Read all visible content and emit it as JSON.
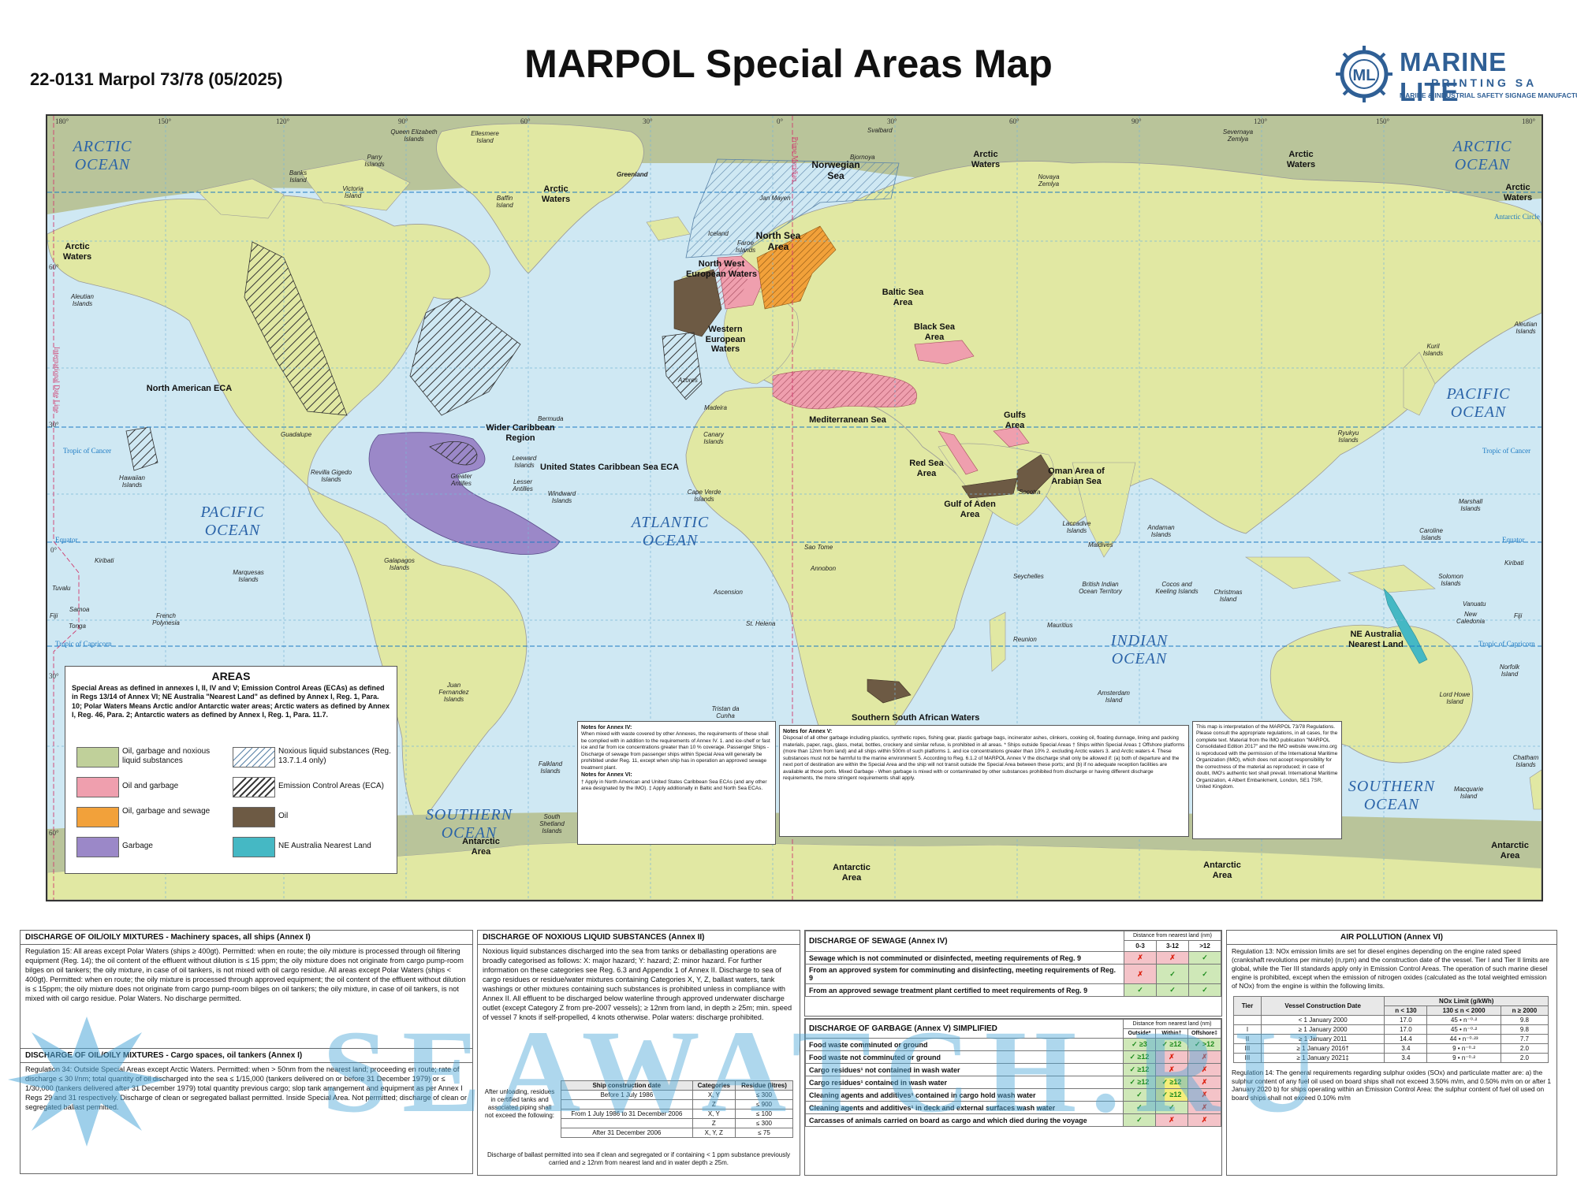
{
  "header": {
    "doc_code": "22-0131 Marpol 73/78 (05/2025)",
    "title": "MARPOL Special Areas Map",
    "logo_brand": "MARINE LITE",
    "logo_sub": "PRINTING SA",
    "logo_tagline": "MARINE & INDUSTRIAL SAFETY SIGNAGE MANUFACTURER"
  },
  "colors": {
    "land": "#e1e8a3",
    "sea": "#cfe8f3",
    "arctic": "#b9c49a",
    "oil_garbage_nls": "#c0d09a",
    "oil_garbage": "#ef9fae",
    "oil_garbage_sewage": "#f2a13a",
    "oil": "#6d5a44",
    "garbage": "#9b88c8",
    "ne_australia": "#45b8c4"
  },
  "map": {
    "oceans": [
      "ARCTIC OCEAN",
      "ARCTIC OCEAN",
      "PACIFIC OCEAN",
      "PACIFIC OCEAN",
      "ATLANTIC OCEAN",
      "INDIAN OCEAN",
      "SOUTHERN OCEAN",
      "SOUTHERN OCEAN"
    ],
    "longitudes_top": [
      "180°",
      "150°",
      "120°",
      "90°",
      "60°",
      "30°",
      "0°",
      "30°",
      "60°",
      "90°",
      "120°",
      "150°",
      "180°"
    ],
    "latitudes": [
      "60°",
      "30°",
      "0°",
      "30°",
      "60°"
    ],
    "circles": {
      "antarctic": "Antarctic Circle",
      "cancer": "Tropic of Cancer",
      "equator": "Equator",
      "capricorn": "Tropic of Capricorn",
      "idl": "International Date Line",
      "prime": "Prime Meridian"
    },
    "areas": {
      "arctic_waters": "Arctic Waters",
      "norwegian_sea": "Norwegian Sea",
      "north_sea": "North Sea Area",
      "nw_european": "North West European Waters",
      "w_european": "Western European Waters",
      "baltic": "Baltic Sea Area",
      "black_sea": "Black Sea Area",
      "mediterranean": "Mediterranean Sea",
      "gulfs": "Gulfs Area",
      "red_sea": "Red Sea Area",
      "oman": "Oman Area of Arabian Sea",
      "aden": "Gulf of Aden Area",
      "wider_caribbean": "Wider Caribbean Region",
      "us_caribbean": "United States Caribbean Sea ECA",
      "north_american": "North American ECA",
      "south_african": "Southern South African Waters",
      "ne_australia": "NE Australia Nearest Land",
      "antarctic_area": "Antarctic Area"
    },
    "places": {
      "greenland": "Greenland",
      "queen_elizabeth": "Queen Elizabeth Islands",
      "ellesmere": "Ellesmere Island",
      "parry": "Parry Islands",
      "banks": "Banks Island",
      "victoria": "Victoria Island",
      "baffin": "Baffin Island",
      "svalbard": "Svalbard",
      "bjornoya": "Bjornoya",
      "jan_mayen": "Jan Mayen",
      "iceland": "Iceland",
      "faroe": "Faroe Islands",
      "severnaya": "Severnaya Zemlya",
      "novaya": "Novaya Zemlya",
      "aleutian": "Aleutian Islands",
      "kuril": "Kuril Islands",
      "ryukyu": "Ryukyu Islands",
      "hawaiian": "Hawaiian Islands",
      "guadalupe": "Guadalupe",
      "revilla": "Revilla Gigedo Islands",
      "bermuda": "Bermuda",
      "azores": "Azores",
      "madeira": "Madeira",
      "canary": "Canary Islands",
      "cape_verde": "Cape Verde Islands",
      "greater_antilles": "Greater Antilles",
      "leeward": "Leeward Islands",
      "lesser_antilles": "Lesser Antilles",
      "windward": "Windward Islands",
      "galapagos": "Galapagos Islands",
      "marquesas": "Marquesas Islands",
      "kiribati": "Kiribati",
      "tuvalu": "Tuvalu",
      "samoa": "Samoa",
      "fiji": "Fiji",
      "tonga": "Tonga",
      "french_polynesia": "French Polynesia",
      "juan_fernandez": "Juan Fernandez Islands",
      "falkland": "Falkland Islands",
      "south_shetland": "South Shetland Islands",
      "ascension": "Ascension",
      "st_helena": "St. Helena",
      "tristan": "Tristan da Cunha",
      "sao_tome": "Sao Tome",
      "annobon": "Annobon",
      "socotra": "Socotra",
      "laccadive": "Laccadive Islands",
      "maldives": "Maldives",
      "andaman": "Andaman Islands",
      "seychelles": "Seychelles",
      "biot": "British Indian Ocean Territory",
      "cocos": "Cocos and Keeling Islands",
      "christmas": "Christmas Island",
      "mauritius": "Mauritius",
      "reunion": "Reunion",
      "amsterdam": "Amsterdam Island",
      "marshall": "Marshall Islands",
      "caroline": "Caroline Islands",
      "kiribati_e": "Kiribati",
      "solomon": "Solomon Islands",
      "vanuatu": "Vanuatu",
      "fiji_e": "Fiji",
      "new_caledonia": "New Caledonia",
      "norfolk": "Norfolk Island",
      "lord_howe": "Lord Howe Island",
      "chatham": "Chatham Islands",
      "macquarie": "Macquarie Island",
      "aleutian_e": "Aleutian Islands"
    }
  },
  "legend": {
    "title": "AREAS",
    "description": "Special Areas as defined in annexes I, II, IV and V; Emission Control Areas (ECAs) as defined in Regs 13/14 of Annex VI; NE Australia \"Nearest Land\" as defined by Annex I, Reg. 1, Para. 10; Polar Waters Means Arctic and/or Antarctic water areas; Arctic waters as defined by Annex I, Reg. 46, Para. 2; Antarctic waters as defined by Annex I, Reg. 1, Para. 11.7.",
    "items": [
      "Oil, garbage and noxious liquid substances",
      "Oil and garbage",
      "Oil, garbage and sewage",
      "Garbage",
      "Noxious liquid substances (Reg. 13.7.1.4 only)",
      "Emission Control Areas (ECA)",
      "Oil",
      "NE Australia Nearest Land"
    ]
  },
  "notes": {
    "annex4_title": "Notes for Annex IV:",
    "annex4_text": "When mixed with waste covered by other Annexes, the requirements of these shall be complied with in addition to the requirements of Annex IV. 1. and ice-shelf or fast ice and far from ice concentrations greater than 10 % coverage. Passenger Ships - Discharge of sewage from passenger ships within Special Area will generally be prohibited under Reg. 11, except when ship has in operation an approved sewage treatment plant.",
    "annex6_title": "Notes for Annex VI:",
    "annex6_text": "† Apply in North American and United States Caribbean Sea ECAs (and any other area designated by the IMO). ‡ Apply additionally in Baltic and North Sea ECAs.",
    "annex5_title": "Notes for Annex V:",
    "annex5_text": "Disposal of all other garbage including plastics, synthetic ropes, fishing gear, plastic garbage bags, incinerator ashes, clinkers, cooking oil, floating dunnage, lining and packing materials, paper, rags, glass, metal, bottles, crockery and similar refuse, is prohibited in all areas. * Ships outside Special Areas † Ships within Special Areas ‡ Offshore platforms (more than 12nm from land) and all ships within 500m of such platforms 1. and ice concentrations greater than 10% 2. excluding Arctic waters 3. and Arctic waters 4. These substances must not be harmful to the marine environment 5. According to Reg. 6.1.2 of MARPOL Annex V the discharge shall only be allowed if: (a) both of departure and the next port of destination are within the Special Area and the ship will not transit outside the Special Area between these ports; and (b) if no adequate reception facilities are available at those ports. Mixed Garbage - When garbage is mixed with or contaminated by other substances prohibited from discharge or having different discharge requirements, the more stringent requirements shall apply.",
    "imo_text": "This map is interpretation of the MARPOL 73/78 Regulations. Please consult the appropriate regulations, in all cases, for the complete text. Material from the IMO publication \"MARPOL Consolidated Edition 2017\" and the IMO website www.imo.org is reproduced with the permission of the International Maritime Organization (IMO), which does not accept responsibility for the correctness of the material as reproduced; in case of doubt, IMO's authentic text shall prevail. International Maritime Organization, 4 Albert Embankment, London, SE1 7SR, United Kingdom."
  },
  "oil_panel": {
    "title": "DISCHARGE OF OIL/OILY MIXTURES - Machinery spaces, all ships (Annex I)",
    "text": "Regulation 15: All areas except Polar Waters (ships ≥ 400gt). Permitted: when en route; the oily mixture is processed through oil filtering equipment (Reg. 14); the oil content of the effluent without dilution is ≤ 15 ppm; the oily mixture does not originate from cargo pump-room bilges on oil tankers; the oily mixture, in case of oil tankers, is not mixed with oil cargo residue. All areas except Polar Waters (ships < 400gt). Permitted: when en route; the oily mixture is processed through approved equipment; the oil content of the effluent without dilution is ≤ 15ppm; the oily mixture does not originate from cargo pump-room bilges on oil tankers; the oily mixture, in case of oil tankers, is not mixed with oil cargo residue. Polar Waters. No discharge permitted.",
    "title2": "DISCHARGE OF OIL/OILY MIXTURES - Cargo spaces, oil tankers (Annex I)",
    "text2": "Regulation 34: Outside Special Areas except Arctic Waters. Permitted: when > 50nm from the nearest land; proceeding en route; rate of discharge ≤ 30 l/nm; total quantity of oil discharged into the sea ≤ 1/15,000 (tankers delivered on or before 31 December 1979) or ≤ 1/30,000 (tankers delivered after 31 December 1979) total quantity previous cargo; slop tank arrangement and equipment as per Annex I Regs 29 and 31 respectively. Discharge of clean or segregated ballast permitted. Inside Special Area. Not permitted; discharge of clean or segregated ballast permitted."
  },
  "nls_panel": {
    "title": "DISCHARGE OF NOXIOUS LIQUID SUBSTANCES (Annex II)",
    "text": "Noxious liquid substances discharged into the sea from tanks or deballasting operations are broadly categorised as follows: X: major hazard; Y: hazard; Z: minor hazard. For further information on these categories see Reg. 6.3 and Appendix 1 of Annex II. Discharge to sea of cargo residues or residue/water mixtures containing Categories X, Y, Z, ballast waters, tank washings or other mixtures containing such substances is prohibited unless in compliance with Annex II. All effluent to be discharged below waterline through approved underwater discharge outlet (except Category Z from pre-2007 vessels); ≥ 12nm from land, in depth ≥ 25m; min. speed of vessel 7 knots if self-propelled, 4 knots otherwise. Polar waters: discharge prohibited.",
    "side_text": "After unloading, residues in certified tanks and associated piping shall not exceed the following:",
    "headers": [
      "Ship construction date",
      "Categories",
      "Residue (litres)"
    ],
    "rows": [
      [
        "Before 1 July 1986",
        "X, Y",
        "≤ 300"
      ],
      [
        "",
        "Z",
        "≤ 900"
      ],
      [
        "From 1 July 1986 to 31 December 2006",
        "X, Y",
        "≤ 100"
      ],
      [
        "",
        "Z",
        "≤ 300"
      ],
      [
        "After 31 December 2006",
        "X, Y, Z",
        "≤ 75"
      ]
    ],
    "footer": "Discharge of ballast permitted into sea if clean and segregated or if containing < 1 ppm substance previously carried and ≥ 12nm from nearest land and in water depth ≥ 25m."
  },
  "sewage_panel": {
    "title": "DISCHARGE OF SEWAGE (Annex IV)",
    "dist_header": "Distance from nearest land (nm)",
    "cols": [
      "0-3",
      "3-12",
      ">12"
    ],
    "rows": [
      {
        "label": "Sewage which is not comminuted or disinfected, meeting requirements of Reg. 9",
        "marks": [
          "✗",
          "✗",
          "✓"
        ]
      },
      {
        "label": "From an approved system for comminuting and disinfecting, meeting requirements of Reg. 9",
        "marks": [
          "✗",
          "✓",
          "✓"
        ]
      },
      {
        "label": "From an approved sewage treatment plant certified to meet requirements of Reg. 9",
        "marks": [
          "✓",
          "✓",
          "✓"
        ]
      }
    ]
  },
  "garbage_panel": {
    "title": "DISCHARGE OF GARBAGE (Annex V) SIMPLIFIED",
    "dist_header": "Distance from nearest land (nm)",
    "cols": [
      "Outside*",
      "Within†",
      "Offshore‡"
    ],
    "rows": [
      {
        "label": "Food waste comminuted or ground",
        "marks": [
          "✓ ≥3",
          "✓ ≥12",
          "✓ >12"
        ]
      },
      {
        "label": "Food waste not comminuted or ground",
        "marks": [
          "✓ ≥12",
          "✗",
          "✗"
        ]
      },
      {
        "label": "Cargo residues¹ not contained in wash water",
        "marks": [
          "✓ ≥12",
          "✗",
          "✗"
        ]
      },
      {
        "label": "Cargo residues¹ contained in wash water",
        "marks": [
          "✓ ≥12",
          "✓ ≥12",
          "✗"
        ]
      },
      {
        "label": "Cleaning agents and additives¹ contained in cargo hold wash water",
        "marks": [
          "✓",
          "✓ ≥12",
          "✗"
        ]
      },
      {
        "label": "Cleaning agents and additives¹ in deck and external surfaces wash water",
        "marks": [
          "✓",
          "✓",
          "✗"
        ]
      },
      {
        "label": "Carcasses of animals carried on board as cargo and which died during the voyage",
        "marks": [
          "✓",
          "✗",
          "✗"
        ]
      }
    ]
  },
  "air_panel": {
    "title": "AIR POLLUTION (Annex VI)",
    "text": "Regulation 13: NOx emission limits are set for diesel engines depending on the engine rated speed (crankshaft revolutions per minute) (n,rpm) and the construction date of the vessel. Tier I and Tier II limits are global, while the Tier III standards apply only in Emission Control Areas. The operation of such marine diesel engine is prohibited, except when the emission of nitrogen oxides (calculated as the total weighted emission of NOx) from the engine is within the following limits.",
    "nox_header": "NOx Limit (g/kWh)",
    "headers": [
      "Tier",
      "Vessel Construction Date",
      "n < 130",
      "130 ≤ n < 2000",
      "n ≥ 2000"
    ],
    "rows": [
      [
        "",
        "< 1 January 2000",
        "17.0",
        "45 • n⁻⁰·²",
        "9.8"
      ],
      [
        "I",
        "≥ 1 January 2000",
        "17.0",
        "45 • n⁻⁰·²",
        "9.8"
      ],
      [
        "II",
        "≥ 1 January 2011",
        "14.4",
        "44 • n⁻⁰·²³",
        "7.7"
      ],
      [
        "III",
        "≥ 1 January 2016†",
        "3.4",
        "9 • n⁻⁰·²",
        "2.0"
      ],
      [
        "III",
        "≥ 1 January 2021‡",
        "3.4",
        "9 • n⁻⁰·²",
        "2.0"
      ]
    ],
    "text2": "Regulation 14: The general requirements regarding sulphur oxides (SOx) and particulate matter are: a) the sulphur content of any fuel oil used on board ships shall not exceed 3.50% m/m, and 0.50% m/m on or after 1 January 2020 b) for ships operating within an Emission Control Area: the sulphur content of fuel oil used on board ships shall not exceed 0.10% m/m"
  },
  "watermark": "SEAWATCH.RU"
}
